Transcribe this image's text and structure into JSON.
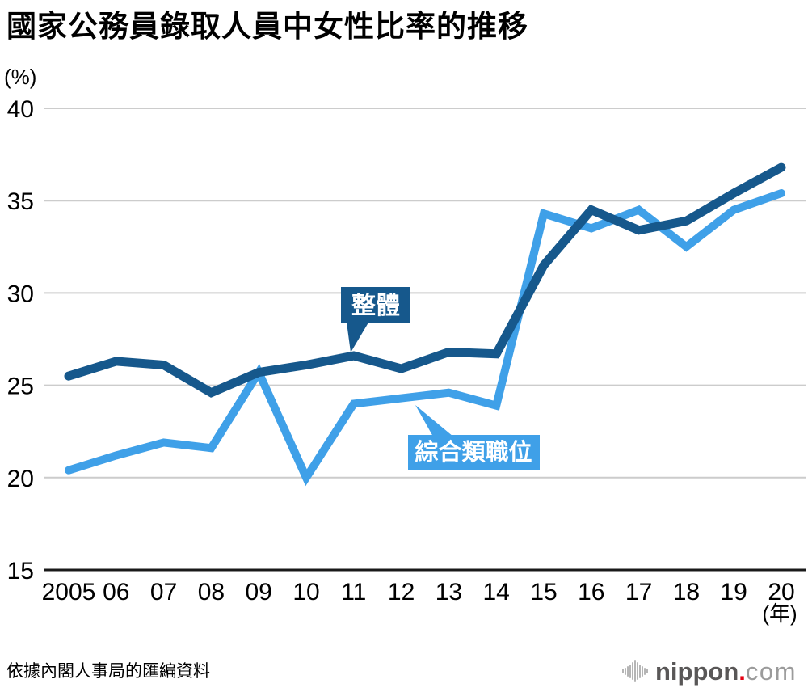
{
  "title": "國家公務員錄取人員中女性比率的推移",
  "source": "依據內閣人事局的匯編資料",
  "logo": {
    "brand": "nippon",
    "dot": ".",
    "suffix": "com"
  },
  "colors": {
    "overall": "#16588C",
    "career": "#3FA0E8",
    "grid": "#CCCCCC",
    "axis": "#1A1A1A",
    "logo_red": "#E60012"
  },
  "chart_data": {
    "type": "line",
    "title": "國家公務員錄取人員中女性比率的推移",
    "y_axis_unit": "(%)",
    "x_axis_unit": "(年)",
    "ylim": [
      15,
      40
    ],
    "y_ticks": [
      15,
      20,
      25,
      30,
      35,
      40
    ],
    "grid": true,
    "legend_position": "inline-callouts",
    "categories": [
      "2005",
      "06",
      "07",
      "08",
      "09",
      "10",
      "11",
      "12",
      "13",
      "14",
      "15",
      "16",
      "17",
      "18",
      "19",
      "20"
    ],
    "series": [
      {
        "key": "overall",
        "name": "整體",
        "color": "#16588C",
        "values": [
          25.5,
          26.3,
          26.1,
          24.6,
          25.7,
          26.1,
          26.6,
          25.9,
          26.8,
          26.7,
          31.5,
          34.5,
          33.4,
          33.9,
          35.4,
          36.8
        ]
      },
      {
        "key": "career-track",
        "name": "綜合類職位",
        "color": "#3FA0E8",
        "values": [
          20.4,
          21.2,
          21.9,
          21.6,
          25.7,
          20.0,
          24.0,
          24.3,
          24.6,
          23.9,
          34.3,
          33.5,
          34.5,
          32.5,
          34.5,
          35.4
        ]
      }
    ],
    "annotations": [
      {
        "label": "整體",
        "series": "overall",
        "points_to_year": "2011"
      },
      {
        "label": "綜合類職位",
        "series": "career-track",
        "points_to_year": "2012"
      }
    ]
  }
}
